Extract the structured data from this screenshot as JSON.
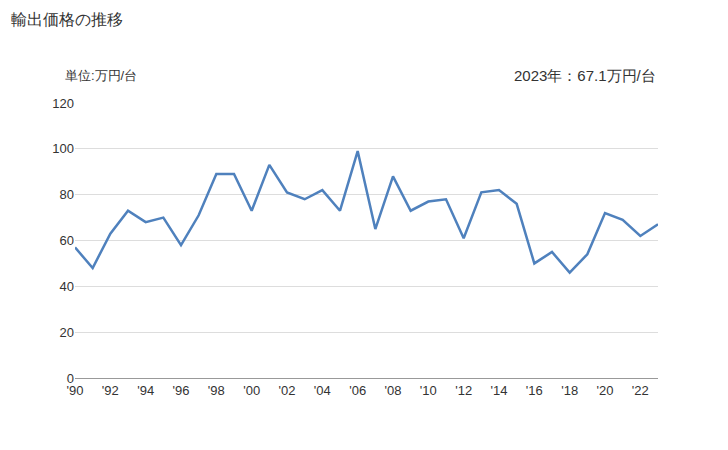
{
  "chart_data": {
    "type": "line",
    "title": "輸出価格の推移",
    "y_label": "単位:万円/台",
    "annotation": "2023年：67.1万円/台",
    "categories": [
      "'90",
      null,
      "'92",
      null,
      "'94",
      null,
      "'96",
      null,
      "'98",
      null,
      "'00",
      null,
      "'02",
      null,
      "'04",
      null,
      "'06",
      null,
      "'08",
      null,
      "'10",
      null,
      "'12",
      null,
      "'14",
      null,
      "'16",
      null,
      "'18",
      null,
      "'20",
      null,
      "'22",
      null
    ],
    "values": [
      57,
      48,
      63,
      73,
      68,
      70,
      58,
      71,
      89,
      89,
      73,
      93,
      81,
      78,
      82,
      73,
      99,
      65,
      88,
      73,
      77,
      78,
      61,
      81,
      82,
      76,
      50,
      55,
      46,
      54,
      72,
      69,
      62,
      67.1
    ],
    "color": "#4f81bd",
    "ylim": [
      0,
      120
    ],
    "yticks": [
      0,
      20,
      40,
      60,
      80,
      100,
      120
    ],
    "grid": true
  }
}
